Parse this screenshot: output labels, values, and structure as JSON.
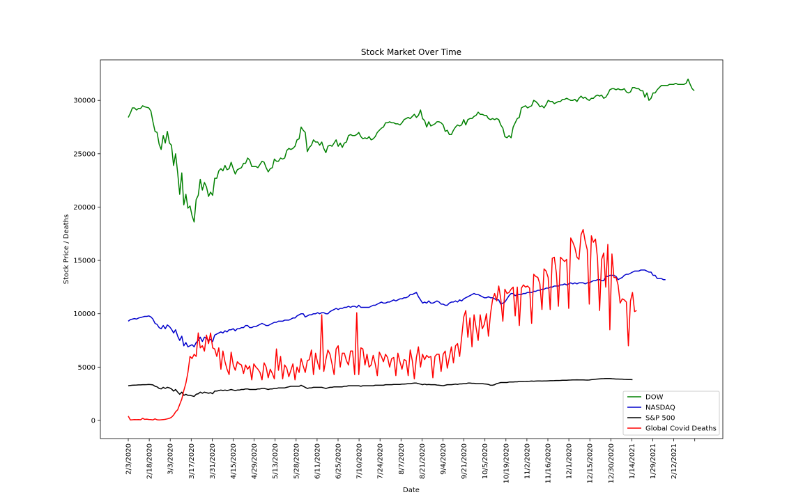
{
  "chart_data": {
    "type": "line",
    "title": "Stock Market Over Time",
    "xlabel": "Date",
    "ylabel": "Stock Price / Deaths",
    "x_ticks": [
      "2/3/2020",
      "2/18/2020",
      "3/3/2020",
      "3/17/2020",
      "3/31/2020",
      "4/15/2020",
      "4/29/2020",
      "5/13/2020",
      "5/28/2020",
      "6/11/2020",
      "6/25/2020",
      "7/10/2020",
      "7/24/2020",
      "8/7/2020",
      "8/21/2020",
      "9/4/2020",
      "9/21/2020",
      "10/5/2020",
      "10/19/2020",
      "11/2/2020",
      "11/16/2020",
      "12/1/2020",
      "12/15/2020",
      "12/30/2020",
      "1/14/2021",
      "1/29/2021",
      "2/12/2021"
    ],
    "y_ticks": [
      0,
      5000,
      10000,
      15000,
      20000,
      25000,
      30000
    ],
    "ylim": [
      -1700,
      33800
    ],
    "grid": false,
    "legend_position": "lower-right",
    "series": [
      {
        "name": "DOW",
        "color": "#008000",
        "values": [
          28400,
          28800,
          29300,
          29300,
          29100,
          29250,
          29250,
          29500,
          29400,
          29350,
          29300,
          29000,
          28000,
          27100,
          27000,
          25900,
          25400,
          26700,
          26000,
          27100,
          26000,
          25800,
          23900,
          25000,
          23200,
          21200,
          23200,
          20200,
          21200,
          19900,
          20100,
          19200,
          18600,
          20700,
          21100,
          22600,
          21600,
          22300,
          21900,
          21000,
          21400,
          21100,
          22700,
          22700,
          23400,
          23600,
          23400,
          23900,
          23500,
          23600,
          24200,
          23600,
          23100,
          23500,
          23600,
          23700,
          24100,
          24100,
          24600,
          24400,
          23800,
          23800,
          23800,
          23700,
          24000,
          24300,
          24200,
          23700,
          23300,
          23600,
          23700,
          24500,
          24300,
          24300,
          24600,
          24500,
          24600,
          25300,
          25500,
          25400,
          25500,
          25700,
          26300,
          26400,
          27500,
          27200,
          27000,
          25200,
          25600,
          25800,
          26300,
          26100,
          26100,
          25800,
          26100,
          25500,
          25100,
          25700,
          25800,
          25700,
          26000,
          26300,
          25700,
          26000,
          25600,
          26000,
          26100,
          26700,
          26800,
          26700,
          26700,
          26800,
          27000,
          26600,
          26400,
          26500,
          26400,
          26600,
          26300,
          26400,
          26600,
          27000,
          27200,
          27400,
          27500,
          27900,
          27900,
          28000,
          27900,
          27900,
          27800,
          27800,
          27700,
          27900,
          28200,
          28300,
          28400,
          28300,
          28500,
          28700,
          28400,
          28600,
          29100,
          28300,
          28100,
          27500,
          28000,
          27600,
          27700,
          27800,
          28000,
          28000,
          27900,
          27700,
          27100,
          27200,
          26800,
          26800,
          27200,
          27500,
          27700,
          27600,
          27700,
          28200,
          27700,
          28200,
          28300,
          28300,
          28500,
          28600,
          28900,
          28700,
          28700,
          28600,
          28600,
          28300,
          28200,
          28300,
          28200,
          28300,
          28200,
          27700,
          27400,
          26600,
          26500,
          26700,
          26500,
          27500,
          27900,
          28300,
          28400,
          29300,
          29400,
          29500,
          29300,
          29400,
          29500,
          30000,
          29900,
          29700,
          29400,
          29500,
          29300,
          29600,
          30000,
          29900,
          29900,
          29700,
          29800,
          29900,
          29900,
          30100,
          30100,
          30200,
          30100,
          30000,
          30000,
          30100,
          29900,
          30200,
          30400,
          30200,
          30300,
          30100,
          30000,
          30200,
          30200,
          30400,
          30500,
          30400,
          30500,
          30200,
          30300,
          30600,
          31000,
          31100,
          31100,
          31000,
          31100,
          31000,
          31000,
          31100,
          30800,
          30700,
          30800,
          31200,
          31200,
          31100,
          31100,
          30900,
          30900,
          30300,
          30700,
          30000,
          30200,
          30700,
          30700,
          31000,
          31200,
          31400,
          31400,
          31400,
          31400,
          31500,
          31500,
          31500,
          31600,
          31500,
          31500,
          31500,
          31500,
          31600,
          32000,
          31500,
          31100,
          30900
        ]
      },
      {
        "name": "NASDAQ",
        "color": "#0000cc",
        "values": [
          9300,
          9450,
          9500,
          9550,
          9500,
          9600,
          9650,
          9700,
          9750,
          9750,
          9800,
          9700,
          9500,
          9100,
          9000,
          8700,
          8600,
          8900,
          8600,
          8950,
          8800,
          8550,
          8200,
          8500,
          7900,
          7500,
          7900,
          7000,
          7300,
          6900,
          7000,
          7100,
          6900,
          7300,
          7500,
          7800,
          7400,
          7800,
          7700,
          7500,
          7600,
          7400,
          8000,
          8100,
          8200,
          8300,
          8200,
          8400,
          8300,
          8500,
          8500,
          8600,
          8400,
          8600,
          8600,
          8700,
          8700,
          8900,
          8900,
          8700,
          8700,
          8800,
          8800,
          8900,
          9000,
          9100,
          9000,
          8900,
          8900,
          9000,
          9100,
          9200,
          9200,
          9300,
          9300,
          9300,
          9400,
          9400,
          9400,
          9500,
          9600,
          9600,
          9800,
          9900,
          10000,
          10000,
          9700,
          9800,
          9900,
          9900,
          10000,
          10000,
          10100,
          10000,
          10100,
          10100,
          10000,
          10000,
          10200,
          10300,
          10400,
          10500,
          10400,
          10500,
          10500,
          10600,
          10600,
          10700,
          10600,
          10700,
          10700,
          10600,
          10800,
          10600,
          10600,
          10600,
          10600,
          10600,
          10700,
          10800,
          10800,
          10900,
          11000,
          11100,
          11000,
          11000,
          11100,
          11100,
          11200,
          11300,
          11200,
          11300,
          11400,
          11400,
          11500,
          11500,
          11600,
          11800,
          11800,
          11900,
          12000,
          11600,
          11300,
          11000,
          11100,
          11000,
          11200,
          11000,
          11000,
          11100,
          11200,
          11100,
          10900,
          10900,
          10800,
          10800,
          11000,
          11100,
          11100,
          11200,
          11100,
          11300,
          11200,
          11400,
          11500,
          11600,
          11700,
          11800,
          11900,
          11800,
          11800,
          11700,
          11600,
          11500,
          11500,
          11600,
          11500,
          11500,
          11400,
          11300,
          11300,
          10900,
          11000,
          11100,
          11400,
          11700,
          11900,
          11900,
          11700,
          11800,
          11800,
          11800,
          11900,
          11900,
          12000,
          12000,
          12000,
          12100,
          12100,
          12200,
          12200,
          12300,
          12300,
          12400,
          12400,
          12500,
          12500,
          12600,
          12600,
          12600,
          12700,
          12700,
          12800,
          12700,
          12800,
          12900,
          12800,
          12900,
          12800,
          12900,
          12900,
          12900,
          12800,
          12900,
          12900,
          13000,
          13100,
          13100,
          13200,
          13200,
          13100,
          13100,
          13500,
          13500,
          13600,
          13600,
          13600,
          13500,
          13200,
          13300,
          13400,
          13600,
          13700,
          13700,
          13800,
          13900,
          14000,
          14000,
          14000,
          14100,
          14100,
          14100,
          14000,
          13900,
          13900,
          13600,
          13600,
          13300,
          13300,
          13300,
          13200,
          13200
        ]
      },
      {
        "name": "S&P 500",
        "color": "#000000",
        "values": [
          3250,
          3280,
          3300,
          3310,
          3320,
          3330,
          3330,
          3350,
          3350,
          3360,
          3370,
          3360,
          3330,
          3200,
          3150,
          3000,
          2950,
          3100,
          3000,
          3100,
          3050,
          2950,
          2750,
          2900,
          2650,
          2450,
          2650,
          2350,
          2450,
          2350,
          2350,
          2300,
          2250,
          2450,
          2500,
          2650,
          2550,
          2650,
          2600,
          2550,
          2600,
          2500,
          2750,
          2750,
          2800,
          2850,
          2800,
          2850,
          2800,
          2850,
          2900,
          2850,
          2800,
          2850,
          2850,
          2900,
          2900,
          2950,
          2950,
          2900,
          2900,
          2900,
          2900,
          2950,
          2950,
          3000,
          3000,
          2950,
          2900,
          2950,
          2950,
          3000,
          3000,
          3050,
          3050,
          3050,
          3050,
          3100,
          3150,
          3200,
          3200,
          3200,
          3200,
          3200,
          3300,
          3200,
          3100,
          3000,
          3050,
          3050,
          3100,
          3100,
          3100,
          3100,
          3100,
          3050,
          3000,
          3050,
          3100,
          3100,
          3150,
          3150,
          3150,
          3150,
          3150,
          3200,
          3200,
          3250,
          3250,
          3250,
          3250,
          3250,
          3250,
          3200,
          3250,
          3250,
          3250,
          3250,
          3250,
          3250,
          3300,
          3300,
          3300,
          3300,
          3300,
          3350,
          3350,
          3350,
          3350,
          3380,
          3380,
          3380,
          3380,
          3400,
          3400,
          3420,
          3450,
          3450,
          3480,
          3500,
          3500,
          3450,
          3400,
          3350,
          3400,
          3350,
          3380,
          3350,
          3350,
          3350,
          3320,
          3300,
          3280,
          3250,
          3300,
          3350,
          3350,
          3350,
          3380,
          3400,
          3380,
          3420,
          3420,
          3450,
          3450,
          3500,
          3500,
          3480,
          3480,
          3450,
          3450,
          3450,
          3450,
          3420,
          3400,
          3380,
          3300,
          3300,
          3350,
          3450,
          3500,
          3550,
          3550,
          3550,
          3550,
          3600,
          3600,
          3600,
          3620,
          3620,
          3650,
          3650,
          3650,
          3660,
          3670,
          3680,
          3690,
          3680,
          3690,
          3700,
          3700,
          3690,
          3700,
          3700,
          3710,
          3720,
          3720,
          3730,
          3740,
          3740,
          3750,
          3760,
          3760,
          3770,
          3780,
          3790,
          3800,
          3800,
          3810,
          3800,
          3800,
          3800,
          3790,
          3780,
          3790,
          3820,
          3840,
          3860,
          3880,
          3900,
          3910,
          3920,
          3930,
          3930,
          3930,
          3910,
          3900,
          3880,
          3880,
          3870,
          3870,
          3850,
          3840,
          3830,
          3830,
          3820
        ]
      },
      {
        "name": "Global Covid Deaths",
        "color": "#ff0000",
        "values": [
          400,
          50,
          60,
          80,
          70,
          80,
          60,
          200,
          100,
          120,
          90,
          80,
          50,
          150,
          60,
          50,
          60,
          80,
          100,
          150,
          200,
          300,
          500,
          800,
          1000,
          1500,
          2000,
          2800,
          3500,
          4500,
          6000,
          5800,
          6200,
          6000,
          8200,
          6800,
          7000,
          6500,
          8000,
          7200,
          8200,
          6800,
          6700,
          6000,
          6800,
          4800,
          6500,
          5500,
          4800,
          4300,
          6400,
          5200,
          4700,
          5500,
          5300,
          5200,
          4400,
          5200,
          4800,
          5100,
          3800,
          5300,
          5000,
          4800,
          4500,
          3800,
          5400,
          5000,
          4000,
          4800,
          4400,
          3900,
          6700,
          4700,
          6000,
          3900,
          5200,
          4900,
          4100,
          4700,
          5300,
          3800,
          5000,
          4500,
          5800,
          5100,
          4500,
          5600,
          5700,
          6600,
          4300,
          6300,
          5400,
          4800,
          9900,
          4600,
          5700,
          6600,
          6200,
          5300,
          4300,
          6700,
          7000,
          5000,
          6300,
          6300,
          5600,
          5200,
          6500,
          6500,
          4300,
          10100,
          4300,
          6800,
          6700,
          5200,
          6200,
          5000,
          5200,
          6100,
          5300,
          4200,
          6400,
          6000,
          5500,
          6200,
          5900,
          5000,
          5800,
          5900,
          4200,
          6300,
          5500,
          4800,
          5700,
          5600,
          4200,
          6600,
          5600,
          3900,
          5900,
          6900,
          5000,
          6200,
          5700,
          6100,
          5900,
          6000,
          4000,
          6000,
          6200,
          6200,
          4600,
          6200,
          6500,
          4900,
          5900,
          6900,
          5400,
          7000,
          7200,
          6000,
          7800,
          9700,
          10300,
          7800,
          9600,
          6900,
          9900,
          8700,
          7500,
          9900,
          8600,
          9000,
          10000,
          7900,
          10000,
          11300,
          11900,
          11200,
          12600,
          11400,
          9300,
          12300,
          11900,
          12000,
          12300,
          12500,
          9800,
          12500,
          8900,
          12400,
          12700,
          12500,
          12600,
          12400,
          9100,
          13700,
          13500,
          13400,
          12800,
          10400,
          14200,
          14000,
          13400,
          10400,
          15200,
          15300,
          13800,
          10700,
          15300,
          15100,
          14900,
          15100,
          10500,
          17100,
          16700,
          16200,
          15300,
          15100,
          17400,
          17900,
          16800,
          16000,
          10900,
          17300,
          16700,
          17000,
          15200,
          10300,
          15100,
          15700,
          12500,
          16500,
          8500,
          15600,
          13400,
          13400,
          12700,
          11000,
          11400,
          11300,
          11100,
          7000,
          11200,
          12000,
          10200,
          10300
        ]
      }
    ]
  }
}
